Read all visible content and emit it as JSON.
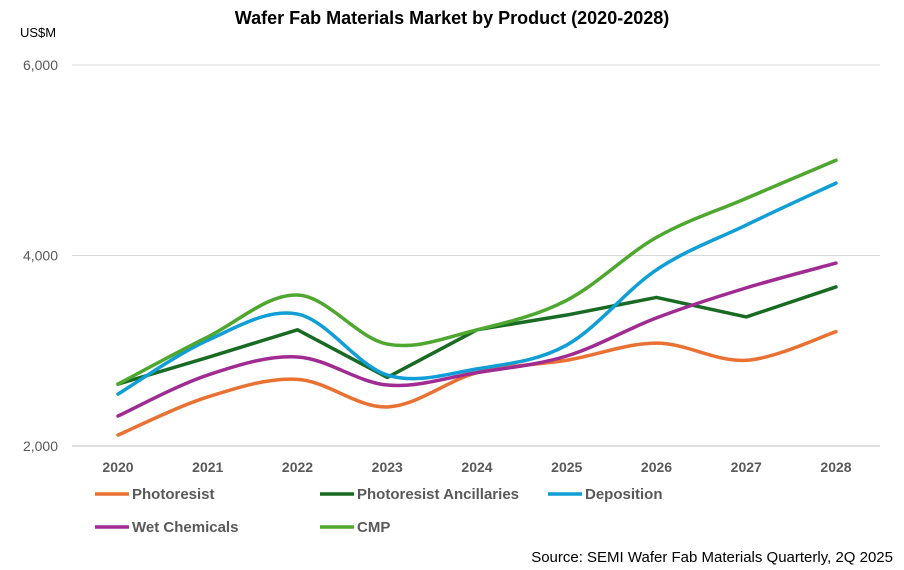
{
  "chart_data": {
    "type": "line",
    "title": "Wafer Fab Materials Market by Product (2020-2028)",
    "ylabel": "US$M",
    "xlabel": "",
    "categories": [
      "2020",
      "2021",
      "2022",
      "2023",
      "2024",
      "2025",
      "2026",
      "2027",
      "2028"
    ],
    "ylim": [
      2000,
      6000
    ],
    "yticks": [
      2000,
      4000,
      6000
    ],
    "ytick_labels": [
      "2,000",
      "4,000",
      "6,000"
    ],
    "grid": true,
    "legend_position": "bottom",
    "series": [
      {
        "name": "Photoresist",
        "color": "#E97132",
        "smooth": true,
        "values": [
          2115,
          2515,
          2700,
          2410,
          2770,
          2900,
          3080,
          2900,
          3200
        ]
      },
      {
        "name": "Photoresist Ancillaries",
        "color": "#196B24",
        "smooth": false,
        "values": [
          2650,
          2930,
          3220,
          2720,
          3220,
          3375,
          3560,
          3355,
          3670
        ]
      },
      {
        "name": "Deposition",
        "color": "#0F9ED5",
        "smooth": true,
        "values": [
          2545,
          3110,
          3385,
          2745,
          2810,
          3060,
          3850,
          4320,
          4760
        ]
      },
      {
        "name": "Wet Chemicals",
        "color": "#A02B93",
        "smooth": true,
        "values": [
          2315,
          2745,
          2935,
          2640,
          2770,
          2945,
          3345,
          3660,
          3920
        ]
      },
      {
        "name": "CMP",
        "color": "#4EA72E",
        "smooth": true,
        "values": [
          2650,
          3145,
          3585,
          3070,
          3220,
          3530,
          4190,
          4600,
          5000
        ]
      }
    ],
    "source": "Source: SEMI Wafer Fab Materials Quarterly, 2Q 2025"
  }
}
